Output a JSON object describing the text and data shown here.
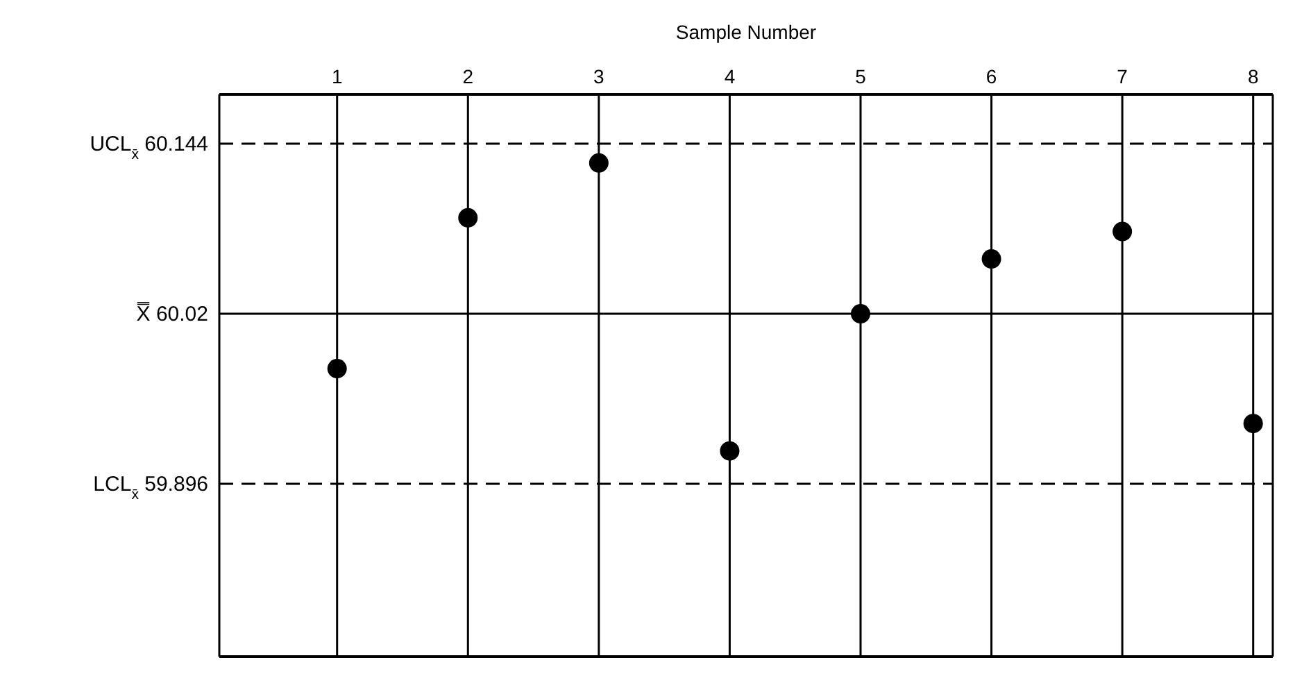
{
  "chart_data": {
    "type": "scatter",
    "xlabel": "Sample Number",
    "x": [
      1,
      2,
      3,
      4,
      5,
      6,
      7,
      8
    ],
    "series": [
      {
        "color": "#000000",
        "values": [
          59.98,
          60.09,
          60.13,
          59.92,
          60.02,
          60.06,
          60.08,
          59.94
        ]
      }
    ],
    "xlim": [
      0.1,
      8.15
    ],
    "xticks": [
      1,
      2,
      3,
      4,
      5,
      6,
      7,
      8
    ],
    "ylim": [
      59.77,
      60.18
    ],
    "tick_labels": "x",
    "grid": "x",
    "marker": "circle",
    "ref_lines": [
      {
        "axis": "y",
        "value": 60.144,
        "label": "UCL$_{x̄}$ 60.144",
        "line_style": "dashed",
        "color": "#000000"
      },
      {
        "axis": "y",
        "value": 60.02,
        "label": "X̿ 60.02",
        "line_style": "solid",
        "color": "#000000"
      },
      {
        "axis": "y",
        "value": 59.896,
        "label": "LCL$_{x̄}$ 59.896",
        "line_style": "dashed",
        "color": "#000000"
      }
    ]
  }
}
